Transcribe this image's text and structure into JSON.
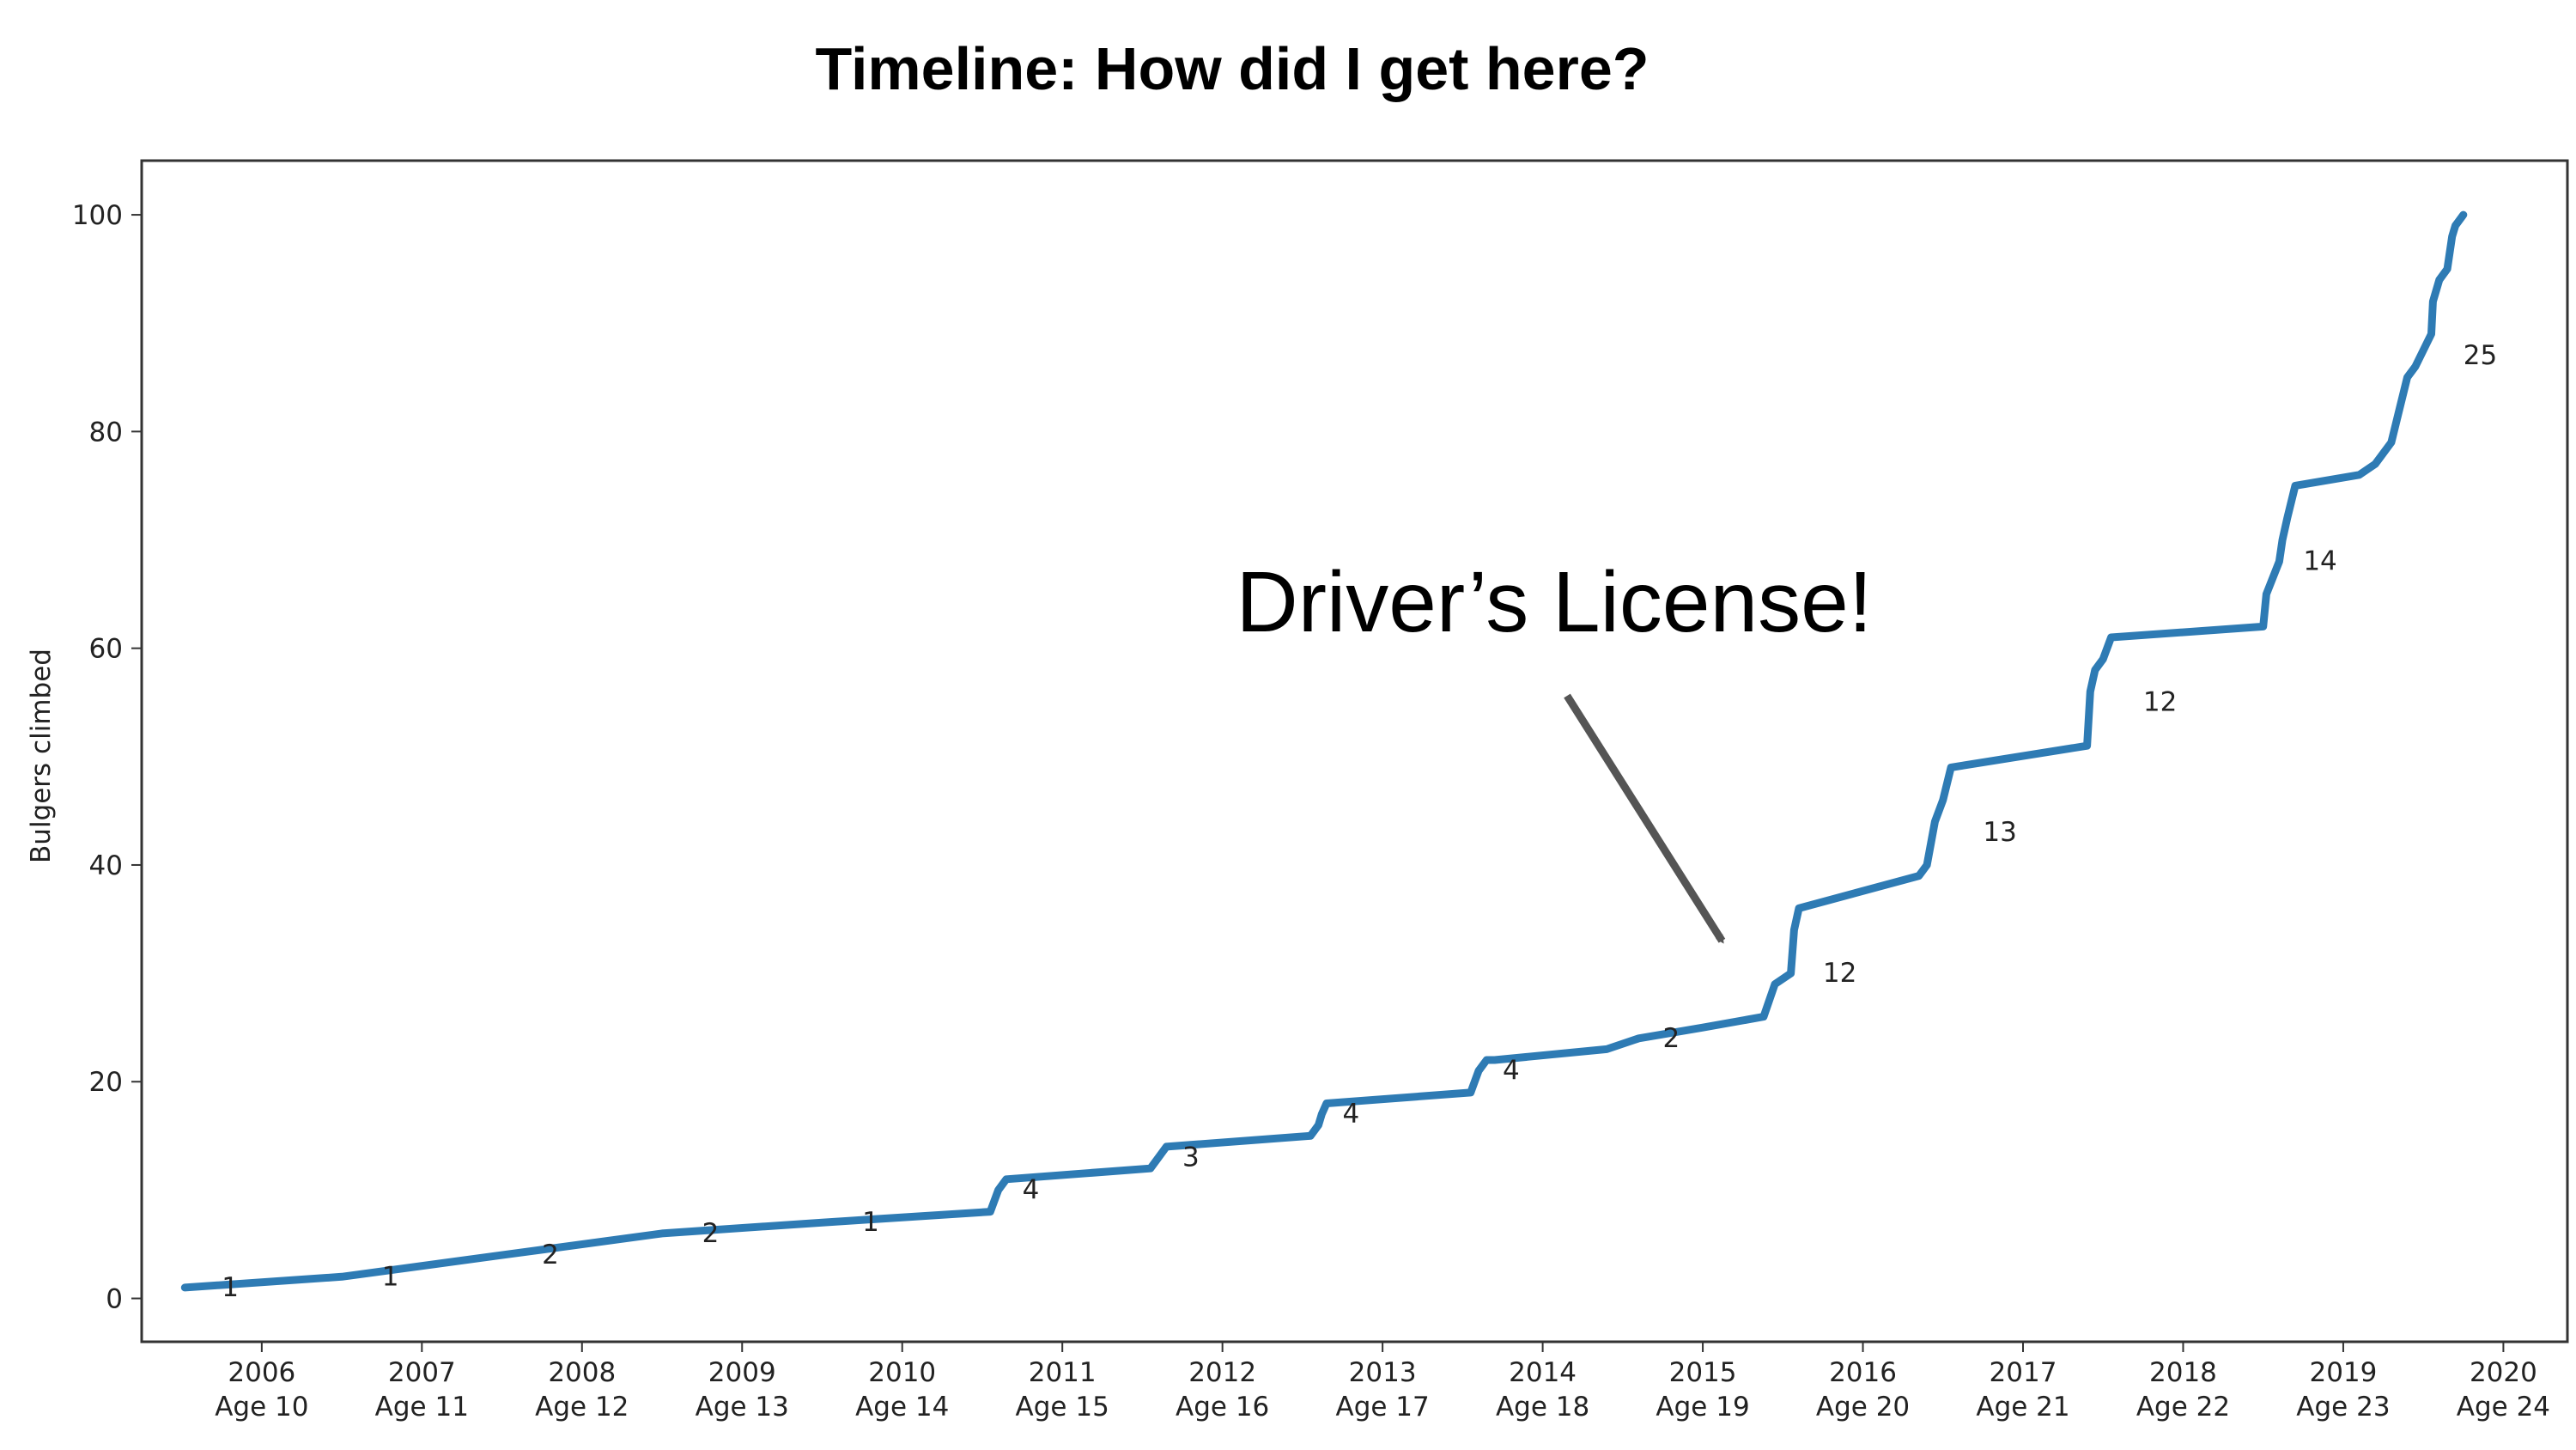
{
  "chart_data": {
    "type": "line",
    "title": "Timeline: How did I get here?",
    "xlabel": "",
    "ylabel": "Bulgers climbed",
    "xlim": [
      2005.25,
      2020.4
    ],
    "ylim": [
      -4,
      105
    ],
    "y_ticks": [
      0,
      20,
      40,
      60,
      80,
      100
    ],
    "x_ticks": [
      {
        "year": 2006,
        "age": "Age 10"
      },
      {
        "year": 2007,
        "age": "Age 11"
      },
      {
        "year": 2008,
        "age": "Age 12"
      },
      {
        "year": 2009,
        "age": "Age 13"
      },
      {
        "year": 2010,
        "age": "Age 14"
      },
      {
        "year": 2011,
        "age": "Age 15"
      },
      {
        "year": 2012,
        "age": "Age 16"
      },
      {
        "year": 2013,
        "age": "Age 17"
      },
      {
        "year": 2014,
        "age": "Age 18"
      },
      {
        "year": 2015,
        "age": "Age 19"
      },
      {
        "year": 2016,
        "age": "Age 20"
      },
      {
        "year": 2017,
        "age": "Age 21"
      },
      {
        "year": 2018,
        "age": "Age 22"
      },
      {
        "year": 2019,
        "age": "Age 23"
      },
      {
        "year": 2020,
        "age": "Age 24"
      }
    ],
    "grid": false,
    "line_color": "#2e7bb4",
    "series": [
      {
        "x": [
          2005.52,
          2006.5,
          2007.5,
          2008.5,
          2009.5,
          2010.55,
          2010.6,
          2010.65,
          2011.55,
          2011.6,
          2011.65,
          2012.55,
          2012.6,
          2012.62,
          2012.65,
          2013.55,
          2013.6,
          2013.65,
          2013.7,
          2014.4,
          2014.6,
          2015.0,
          2015.38,
          2015.45,
          2015.55,
          2015.57,
          2015.6,
          2016.35,
          2016.4,
          2016.45,
          2016.5,
          2016.55,
          2017.4,
          2017.42,
          2017.45,
          2017.5,
          2017.55,
          2018.5,
          2018.52,
          2018.6,
          2018.62,
          2018.65,
          2018.7,
          2019.1,
          2019.2,
          2019.3,
          2019.35,
          2019.4,
          2019.45,
          2019.55,
          2019.56,
          2019.6,
          2019.65,
          2019.68,
          2019.7,
          2019.75
        ],
        "y": [
          1,
          2,
          4,
          6,
          7,
          8,
          10,
          11,
          12,
          13,
          14,
          15,
          16,
          17,
          18,
          19,
          21,
          22,
          22,
          23,
          24,
          25,
          26,
          29,
          30,
          34,
          36,
          39,
          40,
          44,
          46,
          49,
          51,
          56,
          58,
          59,
          61,
          62,
          65,
          68,
          70,
          72,
          75,
          76,
          77,
          79,
          82,
          85,
          86,
          89,
          92,
          94,
          95,
          98,
          99,
          100
        ]
      }
    ],
    "segment_labels": [
      {
        "x": 2005.75,
        "y": 1,
        "text": "1"
      },
      {
        "x": 2006.75,
        "y": 2,
        "text": "1"
      },
      {
        "x": 2007.75,
        "y": 4,
        "text": "2"
      },
      {
        "x": 2008.75,
        "y": 6,
        "text": "2"
      },
      {
        "x": 2009.75,
        "y": 7,
        "text": "1"
      },
      {
        "x": 2010.75,
        "y": 10,
        "text": "4"
      },
      {
        "x": 2011.75,
        "y": 13,
        "text": "3"
      },
      {
        "x": 2012.75,
        "y": 17,
        "text": "4"
      },
      {
        "x": 2013.75,
        "y": 21,
        "text": "4"
      },
      {
        "x": 2014.75,
        "y": 24,
        "text": "2"
      },
      {
        "x": 2015.75,
        "y": 30,
        "text": "12"
      },
      {
        "x": 2016.75,
        "y": 43,
        "text": "13"
      },
      {
        "x": 2017.75,
        "y": 55,
        "text": "12"
      },
      {
        "x": 2018.75,
        "y": 68,
        "text": "14"
      },
      {
        "x": 2019.75,
        "y": 87,
        "text": "25"
      }
    ],
    "annotations": [
      {
        "text": "Driver’s License!",
        "arrow_to": {
          "x": 2015.12,
          "y": 33
        }
      }
    ]
  }
}
